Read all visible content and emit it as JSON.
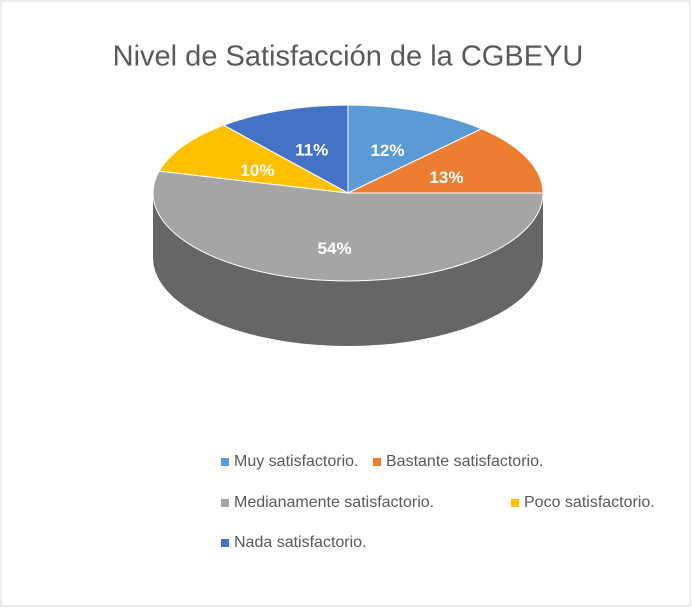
{
  "chart_data": {
    "type": "pie3d",
    "title": "Nivel de Satisfacción de la CGBEYU",
    "categories": [
      "Muy satisfactorio.",
      "Bastante satisfactorio.",
      "Medianamente satisfactorio.",
      "Poco satisfactorio.",
      "Nada satisfactorio."
    ],
    "values": [
      12,
      13,
      54,
      10,
      11
    ],
    "value_labels": [
      "12%",
      "13%",
      "54%",
      "10%",
      "11%"
    ],
    "colors": [
      "#5b9bd5",
      "#ed7d31",
      "#a5a5a5",
      "#ffc000",
      "#4472c4"
    ],
    "legend": "bottom"
  }
}
